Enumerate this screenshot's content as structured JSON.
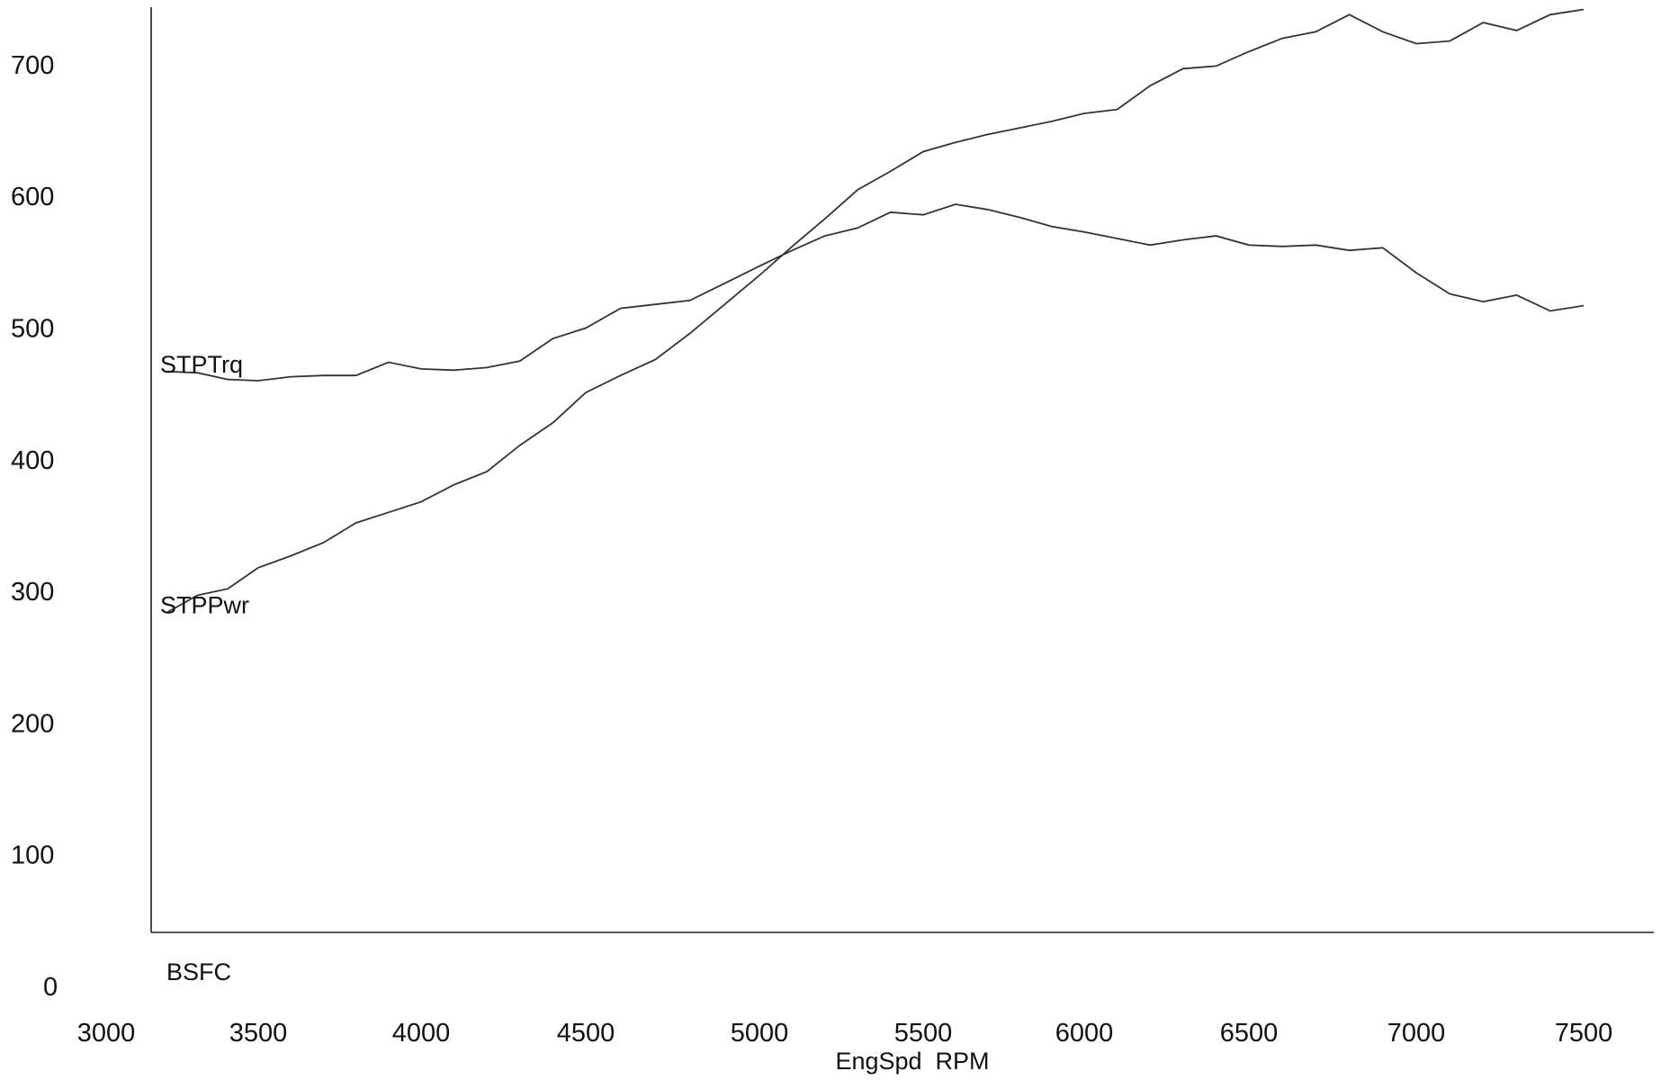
{
  "chart_data": {
    "type": "line",
    "xlabel": "EngSpd  RPM",
    "ylabel": "",
    "xlim": [
      3000,
      7500
    ],
    "ylim": [
      0,
      700
    ],
    "x_ticks": [
      "3000",
      "3500",
      "4000",
      "4500",
      "5000",
      "5500",
      "6000",
      "6500",
      "7000",
      "7500"
    ],
    "y_ticks": [
      "0",
      "100",
      "200",
      "300",
      "400",
      "500",
      "600",
      "700"
    ],
    "grid": false,
    "legend": "inline labels",
    "extra_label": "BSFC",
    "series": [
      {
        "name": "STPTrq",
        "x": [
          3200,
          3300,
          3400,
          3500,
          3600,
          3700,
          3800,
          3900,
          4000,
          4100,
          4200,
          4300,
          4400,
          4500,
          4600,
          4700,
          4800,
          4900,
          5000,
          5100,
          5200,
          5300,
          5400,
          5500,
          5600,
          5700,
          5800,
          5900,
          6000,
          6100,
          6200,
          6300,
          6400,
          6500,
          6600,
          6700,
          6800,
          6900,
          7000,
          7100,
          7200,
          7300,
          7400,
          7500
        ],
        "values": [
          467,
          466,
          461,
          460,
          463,
          464,
          464,
          474,
          469,
          468,
          470,
          475,
          492,
          500,
          515,
          518,
          521,
          534,
          547,
          559,
          570,
          576,
          588,
          586,
          594,
          590,
          584,
          577,
          573,
          568,
          563,
          567,
          570,
          563,
          562,
          563,
          559,
          561,
          542,
          526,
          520,
          525,
          513,
          517
        ]
      },
      {
        "name": "STPPwr",
        "x": [
          3200,
          3300,
          3400,
          3500,
          3600,
          3700,
          3800,
          3900,
          4000,
          4100,
          4200,
          4300,
          4400,
          4500,
          4600,
          4700,
          4800,
          4900,
          5000,
          5100,
          5200,
          5300,
          5400,
          5500,
          5600,
          5700,
          5800,
          5900,
          6000,
          6100,
          6200,
          6300,
          6400,
          6500,
          6600,
          6700,
          6800,
          6900,
          7000,
          7100,
          7200,
          7300,
          7400,
          7500
        ],
        "values": [
          284,
          297,
          302,
          318,
          327,
          337,
          352,
          360,
          368,
          381,
          391,
          411,
          428,
          451,
          464,
          476,
          496,
          518,
          540,
          562,
          583,
          605,
          619,
          634,
          641,
          647,
          652,
          657,
          663,
          666,
          684,
          697,
          699,
          710,
          720,
          725,
          738,
          725,
          716,
          718,
          732,
          726,
          738,
          742
        ]
      }
    ]
  }
}
